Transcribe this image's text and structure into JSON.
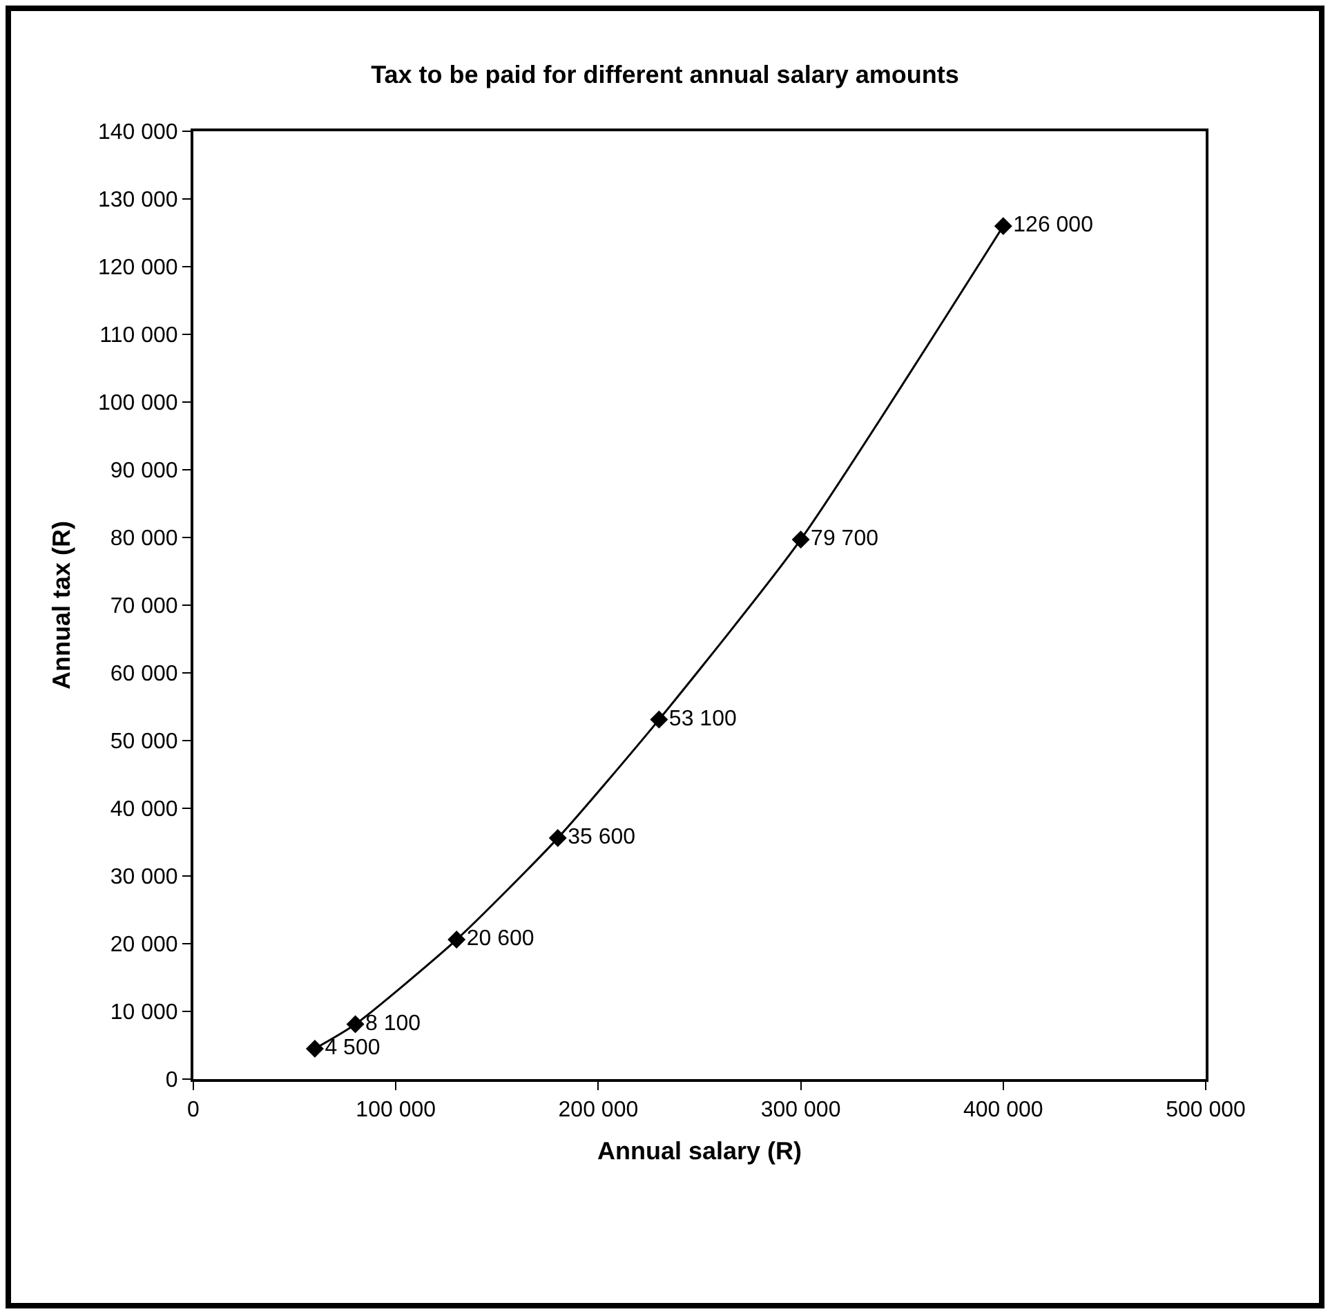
{
  "chart_data": {
    "type": "line",
    "title": "Tax to be paid for different annual salary amounts",
    "xlabel": "Annual salary (R)",
    "ylabel": "Annual tax (R)",
    "x": [
      60000,
      80000,
      130000,
      180000,
      230000,
      300000,
      400000
    ],
    "series": [
      {
        "color": "#000000",
        "values": [
          4500,
          8100,
          20600,
          35600,
          53100,
          79700,
          126000
        ],
        "value_labels": [
          "4 500",
          "8 100",
          "20 600",
          "35 600",
          "53 100",
          "79 700",
          "126 000"
        ]
      }
    ],
    "xlim": [
      0,
      500000
    ],
    "xticks": [
      0,
      {
        "value": 100000,
        "label": "100 000"
      },
      {
        "value": 200000,
        "label": "200 000"
      },
      {
        "value": 300000,
        "label": "300 000"
      },
      {
        "value": 400000,
        "label": "400 000"
      },
      {
        "value": 500000,
        "label": "500 000"
      }
    ],
    "ylim": [
      0,
      140000
    ],
    "yticks": [
      0,
      {
        "value": 10000,
        "label": "10 000"
      },
      {
        "value": 20000,
        "label": "20 000"
      },
      {
        "value": 30000,
        "label": "30 000"
      },
      {
        "value": 40000,
        "label": "40 000"
      },
      {
        "value": 50000,
        "label": "50 000"
      },
      {
        "value": 60000,
        "label": "60 000"
      },
      {
        "value": 70000,
        "label": "70 000"
      },
      {
        "value": 80000,
        "label": "80 000"
      },
      {
        "value": 90000,
        "label": "90 000"
      },
      {
        "value": 100000,
        "label": "100 000"
      },
      {
        "value": 110000,
        "label": "110 000"
      },
      {
        "value": 120000,
        "label": "120 000"
      },
      {
        "value": 130000,
        "label": "130 000"
      },
      {
        "value": 140000,
        "label": "140 000"
      }
    ],
    "marker": "diamond",
    "line_style": "solid"
  }
}
